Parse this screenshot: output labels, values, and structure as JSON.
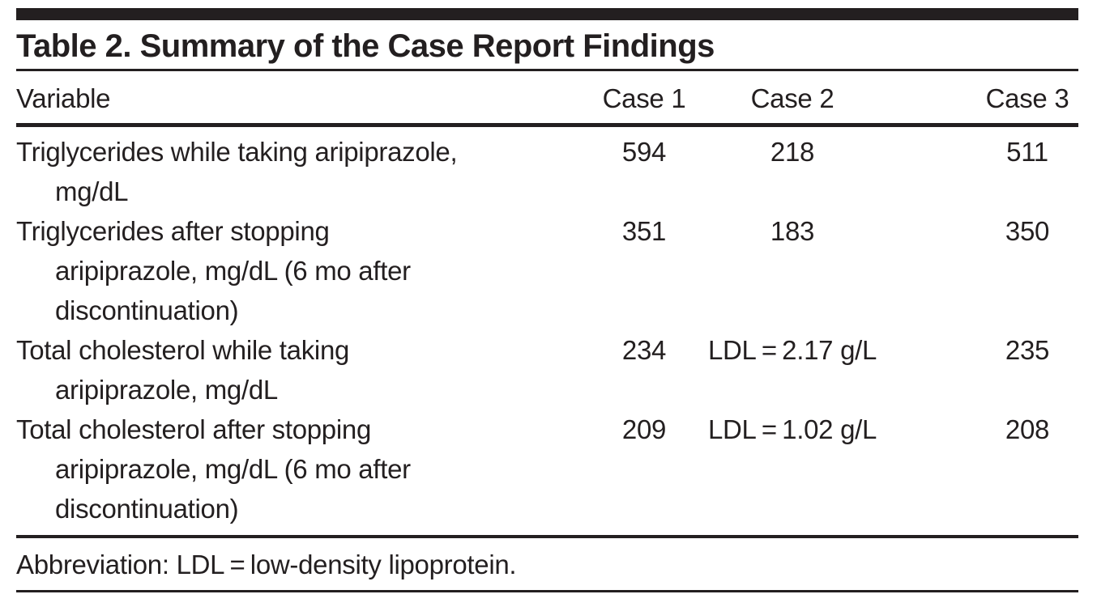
{
  "table": {
    "title": "Table 2. Summary of the Case Report Findings",
    "columns": [
      "Variable",
      "Case 1",
      "Case 2",
      "Case 3"
    ],
    "rows": [
      {
        "variable_lines": [
          "Triglycerides while taking aripiprazole,",
          "mg/dL"
        ],
        "values": [
          "594",
          "218",
          "511"
        ]
      },
      {
        "variable_lines": [
          "Triglycerides after stopping",
          "aripiprazole, mg/dL (6 mo after",
          "discontinuation)"
        ],
        "values": [
          "351",
          "183",
          "350"
        ]
      },
      {
        "variable_lines": [
          "Total cholesterol while taking",
          "aripiprazole, mg/dL"
        ],
        "values": [
          "234",
          "LDL = 2.17 g/L",
          "235"
        ]
      },
      {
        "variable_lines": [
          "Total cholesterol after stopping",
          "aripiprazole, mg/dL (6 mo after",
          "discontinuation)"
        ],
        "values": [
          "209",
          "LDL = 1.02 g/L",
          "208"
        ]
      }
    ],
    "footnote": "Abbreviation: LDL = low-density lipoprotein.",
    "ink_color": "#231f20",
    "background_color": "#ffffff"
  }
}
